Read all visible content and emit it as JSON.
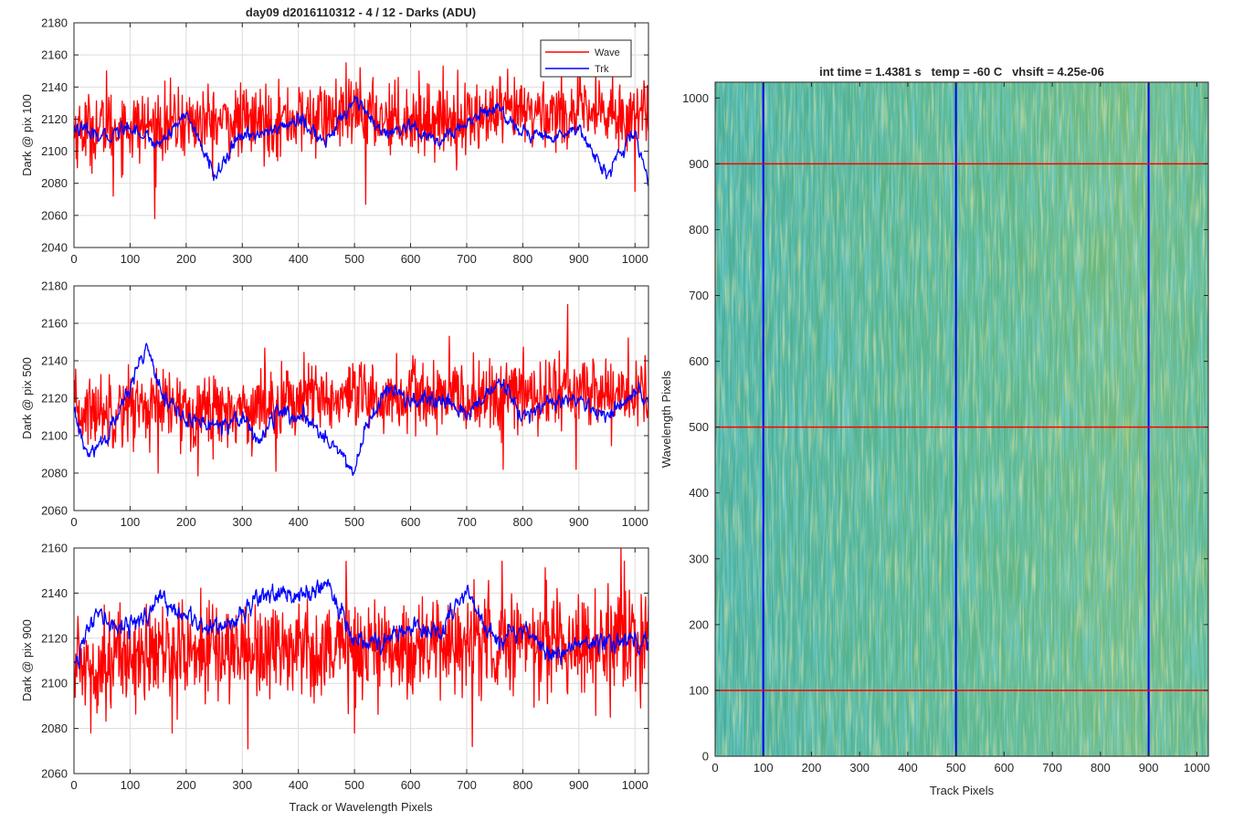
{
  "figure": {
    "title": "day09 d2016110312 - 4 / 12 - Darks (ADU)",
    "heatmap_title": "int time = 1.4381 s   temp = -60 C   vhsift = 4.25e-06"
  },
  "colors": {
    "wave": "#ff0000",
    "trk": "#0000ff",
    "axis": "#262626",
    "grid": "#dcdcdc",
    "heatmap_low": "#2fa5c0",
    "heatmap_mid": "#55b28a",
    "heatmap_high": "#b4c25a"
  },
  "chart_data": [
    {
      "type": "line",
      "title": "day09 d2016110312 - 4 / 12 - Darks (ADU)",
      "xlabel": "",
      "ylabel": "Dark @ pix 100",
      "xlim": [
        0,
        1024
      ],
      "ylim": [
        2040,
        2180
      ],
      "xticks": [
        0,
        100,
        200,
        300,
        400,
        500,
        600,
        700,
        800,
        900,
        1000
      ],
      "yticks": [
        2040,
        2060,
        2080,
        2100,
        2120,
        2140,
        2160,
        2180
      ],
      "grid": true,
      "legend": {
        "position": "top-right",
        "entries": [
          "Wave",
          "Trk"
        ]
      },
      "series": [
        {
          "name": "Wave",
          "color": "#ff0000",
          "mean": 2119,
          "noise": 11,
          "drift": 3,
          "x": [
            0,
            70,
            140,
            200,
            300,
            400,
            510,
            600,
            700,
            800,
            900,
            960,
            1024
          ],
          "trend": [
            2113,
            2115,
            2116,
            2118,
            2118,
            2120,
            2123,
            2120,
            2120,
            2124,
            2124,
            2122,
            2125
          ],
          "extremes": [
            [
              58,
              2150
            ],
            [
              70,
              2072
            ],
            [
              144,
              2058
            ],
            [
              510,
              2152
            ],
            [
              520,
              2067
            ],
            [
              960,
              2150
            ],
            [
              1000,
              2075
            ]
          ]
        },
        {
          "name": "Trk",
          "color": "#0000ff",
          "mean": 2112,
          "noise": 4,
          "drift": 2,
          "x": [
            0,
            50,
            100,
            150,
            200,
            250,
            300,
            350,
            400,
            450,
            500,
            550,
            600,
            650,
            700,
            750,
            800,
            850,
            900,
            950,
            1000,
            1024
          ],
          "trend": [
            2115,
            2108,
            2116,
            2104,
            2124,
            2085,
            2110,
            2112,
            2120,
            2105,
            2134,
            2110,
            2114,
            2105,
            2118,
            2128,
            2112,
            2108,
            2115,
            2085,
            2112,
            2080
          ]
        }
      ]
    },
    {
      "type": "line",
      "xlabel": "",
      "ylabel": "Dark @ pix 500",
      "xlim": [
        0,
        1024
      ],
      "ylim": [
        2060,
        2180
      ],
      "xticks": [
        0,
        100,
        200,
        300,
        400,
        500,
        600,
        700,
        800,
        900,
        1000
      ],
      "yticks": [
        2060,
        2080,
        2100,
        2120,
        2140,
        2160,
        2180
      ],
      "grid": true,
      "series": [
        {
          "name": "Wave",
          "color": "#ff0000",
          "mean": 2118,
          "noise": 10,
          "drift": 3,
          "x": [
            0,
            100,
            200,
            300,
            400,
            500,
            600,
            700,
            800,
            900,
            1000,
            1024
          ],
          "trend": [
            2112,
            2116,
            2114,
            2114,
            2120,
            2118,
            2121,
            2120,
            2122,
            2124,
            2122,
            2124
          ],
          "extremes": [
            [
              880,
              2170
            ],
            [
              895,
              2082
            ],
            [
              150,
              2080
            ],
            [
              360,
              2081
            ],
            [
              765,
              2082
            ]
          ]
        },
        {
          "name": "Trk",
          "color": "#0000ff",
          "mean": 2110,
          "noise": 4,
          "drift": 2,
          "x": [
            0,
            25,
            60,
            100,
            130,
            160,
            200,
            250,
            300,
            330,
            360,
            400,
            450,
            500,
            520,
            560,
            600,
            650,
            700,
            760,
            800,
            850,
            900,
            950,
            1000,
            1024
          ],
          "trend": [
            2112,
            2088,
            2100,
            2125,
            2150,
            2120,
            2108,
            2106,
            2110,
            2097,
            2112,
            2110,
            2100,
            2080,
            2105,
            2125,
            2118,
            2118,
            2112,
            2128,
            2110,
            2118,
            2118,
            2110,
            2122,
            2118
          ]
        }
      ]
    },
    {
      "type": "line",
      "xlabel": "Track or Wavelength Pixels",
      "ylabel": "Dark @ pix 900",
      "xlim": [
        0,
        1024
      ],
      "ylim": [
        2060,
        2160
      ],
      "xticks": [
        0,
        100,
        200,
        300,
        400,
        500,
        600,
        700,
        800,
        900,
        1000
      ],
      "yticks": [
        2060,
        2080,
        2100,
        2120,
        2140,
        2160
      ],
      "grid": true,
      "series": [
        {
          "name": "Wave",
          "color": "#ff0000",
          "mean": 2115,
          "noise": 11,
          "drift": 3,
          "x": [
            0,
            100,
            200,
            300,
            400,
            500,
            600,
            700,
            800,
            900,
            1000,
            1024
          ],
          "trend": [
            2108,
            2112,
            2114,
            2115,
            2116,
            2116,
            2116,
            2118,
            2120,
            2118,
            2118,
            2116
          ],
          "extremes": [
            [
              310,
              2071
            ],
            [
              710,
              2072
            ],
            [
              975,
              2160
            ],
            [
              30,
              2078
            ],
            [
              500,
              2078
            ],
            [
              956,
              2085
            ]
          ]
        },
        {
          "name": "Trk",
          "color": "#0000ff",
          "mean": 2125,
          "noise": 4,
          "drift": 2,
          "x": [
            0,
            40,
            80,
            120,
            160,
            200,
            250,
            300,
            330,
            370,
            420,
            450,
            500,
            550,
            600,
            650,
            700,
            750,
            800,
            850,
            900,
            950,
            1000,
            1024
          ],
          "trend": [
            2110,
            2130,
            2125,
            2128,
            2138,
            2128,
            2125,
            2130,
            2140,
            2140,
            2138,
            2145,
            2120,
            2118,
            2125,
            2122,
            2140,
            2120,
            2125,
            2112,
            2118,
            2118,
            2120,
            2120
          ]
        }
      ]
    },
    {
      "type": "heatmap",
      "title": "int time = 1.4381 s   temp = -60 C   vhsift = 4.25e-06",
      "xlabel": "Track Pixels",
      "ylabel": "Wavelength Pixels",
      "xlim": [
        0,
        1024
      ],
      "ylim": [
        0,
        1024
      ],
      "xticks": [
        0,
        100,
        200,
        300,
        400,
        500,
        600,
        700,
        800,
        900,
        1000
      ],
      "yticks": [
        0,
        100,
        200,
        300,
        400,
        500,
        600,
        700,
        800,
        900,
        1000
      ],
      "colormap": "parula",
      "value_range_adu": [
        2080,
        2160
      ],
      "vertical_markers": {
        "color": "#0000ff",
        "x": [
          100,
          500,
          900
        ]
      },
      "horizontal_markers": {
        "color": "#ff0000",
        "y": [
          100,
          500,
          900
        ]
      }
    }
  ]
}
